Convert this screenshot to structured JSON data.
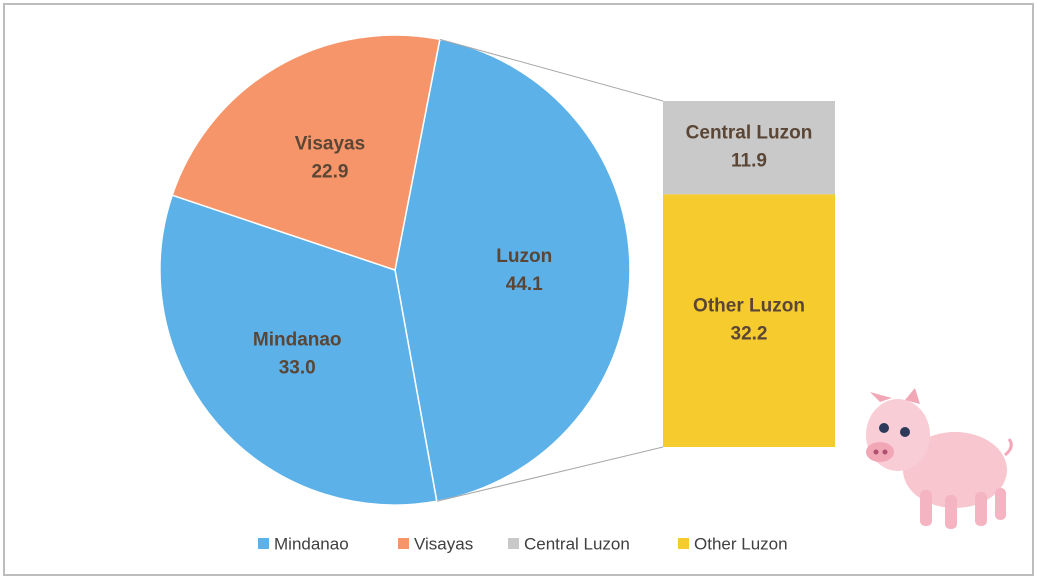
{
  "chart_data": {
    "type": "pie-of-bar",
    "categories": [
      "Luzon",
      "Mindanao",
      "Visayas"
    ],
    "values": [
      44.1,
      33.0,
      22.9
    ],
    "value_labels": [
      "44.1",
      "33.0",
      "22.9"
    ],
    "colors": [
      "#5cb1e8",
      "#5cb1e8",
      "#f7956a"
    ],
    "breakdown": {
      "categories": [
        "Central Luzon",
        "Other Luzon"
      ],
      "values": [
        11.9,
        32.2
      ],
      "colors": [
        "#c9c9c9",
        "#f6cb2e"
      ]
    }
  }
}
